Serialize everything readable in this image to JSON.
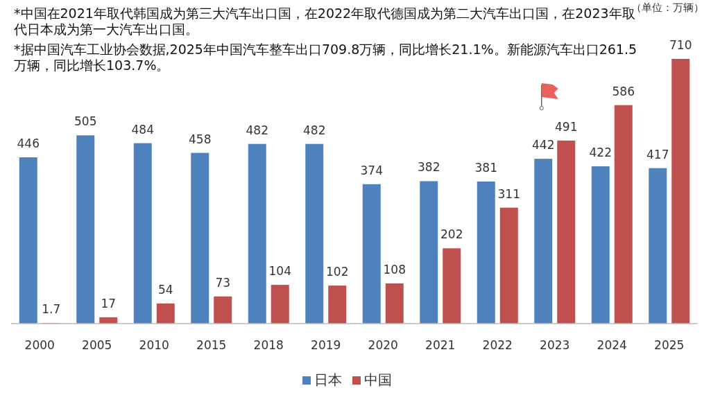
{
  "chart_data": {
    "type": "bar",
    "subtitle": "（单位：万辆）",
    "annotations": [
      "*中国在2021年取代韩国成为第三大汽车出口国，在2022年取代德国成为第二大汽车出口国，在2023年取代日本成为第一大汽车出口国。",
      "*据中国汽车工业协会数据,2025年中国汽车整车出口709.8万辆，同比增长21.1%。新能源汽车出口261.5万辆，同比增长103.7%。"
    ],
    "categories": [
      "2000",
      "2005",
      "2010",
      "2015",
      "2018",
      "2019",
      "2020",
      "2021",
      "2022",
      "2023",
      "2024",
      "2025"
    ],
    "series": [
      {
        "name": "日本",
        "color": "#4f81bd",
        "values": [
          446,
          505,
          484,
          458,
          482,
          482,
          374,
          382,
          381,
          442,
          422,
          417
        ]
      },
      {
        "name": "中国",
        "color": "#c0504d",
        "values": [
          1.7,
          17,
          54,
          73,
          104,
          102,
          108,
          202,
          311,
          491,
          586,
          710
        ]
      }
    ],
    "data_labels": true,
    "legend": "bottom"
  }
}
